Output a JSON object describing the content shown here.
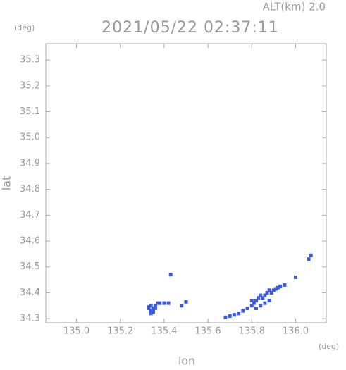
{
  "chart_data": {
    "type": "scatter",
    "header": "ALT(km) 2.0",
    "y_unit": "(deg)",
    "title": "2021/05/22 02:37:11",
    "ylabel": "lat",
    "xlabel": "lon",
    "x_unit": "(deg)",
    "color": "#3a5ae0",
    "x": [
      135.33,
      135.34,
      135.35,
      135.36,
      135.33,
      135.34,
      135.35,
      135.34,
      135.35,
      135.36,
      135.37,
      135.38,
      135.4,
      135.42,
      135.48,
      135.5,
      135.43,
      135.68,
      135.7,
      135.72,
      135.74,
      135.76,
      135.78,
      135.8,
      135.81,
      135.82,
      135.83,
      135.84,
      135.85,
      135.86,
      135.87,
      135.88,
      135.89,
      135.9,
      135.91,
      135.92,
      135.93,
      135.95,
      135.82,
      135.84,
      135.86,
      135.88,
      135.8,
      136.0,
      136.06,
      136.07
    ],
    "values": [
      34.34,
      34.35,
      34.34,
      34.35,
      34.345,
      34.33,
      34.33,
      34.32,
      34.325,
      34.34,
      34.36,
      34.36,
      34.36,
      34.36,
      34.35,
      34.365,
      34.47,
      34.305,
      34.31,
      34.315,
      34.32,
      34.33,
      34.34,
      34.35,
      34.36,
      34.37,
      34.38,
      34.39,
      34.38,
      34.39,
      34.4,
      34.41,
      34.4,
      34.41,
      34.415,
      34.42,
      34.425,
      34.43,
      34.34,
      34.35,
      34.36,
      34.37,
      34.37,
      34.46,
      34.53,
      34.545
    ],
    "xlim": [
      134.86,
      136.14
    ],
    "ylim": [
      34.284,
      35.363
    ],
    "xticks": [
      {
        "value": 135,
        "label": "135.0"
      },
      135.2,
      135.4,
      135.6,
      135.8,
      {
        "value": 136,
        "label": "136.0"
      }
    ],
    "yticks": [
      34.3,
      34.4,
      34.5,
      34.6,
      34.7,
      34.8,
      34.9,
      {
        "value": 35,
        "label": "35.0"
      },
      35.1,
      35.2,
      35.3
    ]
  }
}
